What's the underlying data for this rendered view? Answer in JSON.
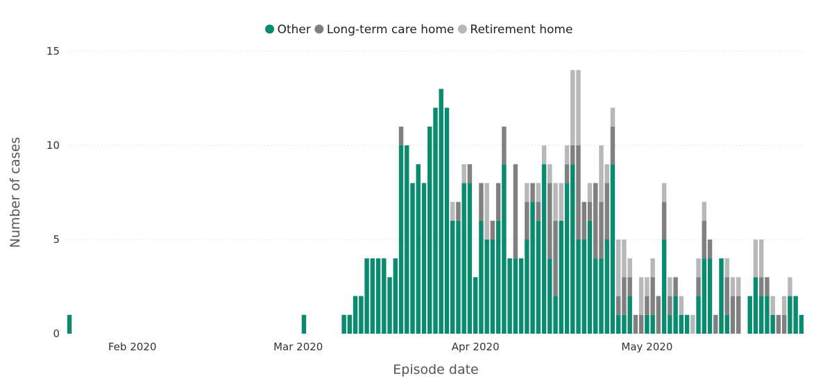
{
  "chart_data": {
    "type": "bar",
    "stacked": true,
    "xlabel": "Episode date",
    "ylabel": "Number of cases",
    "ylim": [
      0,
      15
    ],
    "yticks": [
      0,
      5,
      10,
      15
    ],
    "grid": "horizontal dotted",
    "legend_position": "top-center",
    "x_start": "2020-01-21",
    "x_ticks": [
      {
        "label": "Feb 2020",
        "date": "2020-02-01"
      },
      {
        "label": "Mar 2020",
        "date": "2020-03-01"
      },
      {
        "label": "Apr 2020",
        "date": "2020-04-01"
      },
      {
        "label": "May 2020",
        "date": "2020-05-01"
      }
    ],
    "series": [
      {
        "name": "Other",
        "color": "#0a8a6e",
        "values": [
          1,
          0,
          0,
          0,
          0,
          0,
          0,
          0,
          0,
          0,
          0,
          0,
          0,
          0,
          0,
          0,
          0,
          0,
          0,
          0,
          0,
          0,
          0,
          0,
          0,
          0,
          0,
          0,
          0,
          0,
          0,
          0,
          0,
          0,
          0,
          0,
          0,
          0,
          0,
          0,
          0,
          1,
          0,
          0,
          0,
          0,
          0,
          0,
          1,
          1,
          2,
          2,
          4,
          4,
          4,
          4,
          3,
          4,
          10,
          10,
          8,
          9,
          8,
          11,
          12,
          13,
          12,
          6,
          6,
          8,
          8,
          3,
          6,
          5,
          5,
          6,
          9,
          4,
          4,
          4,
          5,
          7,
          6,
          9,
          4,
          2,
          6,
          8,
          9,
          5,
          5,
          6,
          4,
          4,
          5,
          9,
          1,
          1,
          2,
          0,
          0,
          1,
          1,
          0,
          5,
          1,
          2,
          1,
          1,
          0,
          2,
          4,
          4,
          0,
          4,
          1,
          0,
          0,
          0,
          2,
          3,
          2,
          2,
          1,
          0,
          0,
          2,
          2,
          1
        ]
      },
      {
        "name": "Long-term care home",
        "color": "#808080",
        "values": [
          0,
          0,
          0,
          0,
          0,
          0,
          0,
          0,
          0,
          0,
          0,
          0,
          0,
          0,
          0,
          0,
          0,
          0,
          0,
          0,
          0,
          0,
          0,
          0,
          0,
          0,
          0,
          0,
          0,
          0,
          0,
          0,
          0,
          0,
          0,
          0,
          0,
          0,
          0,
          0,
          0,
          0,
          0,
          0,
          0,
          0,
          0,
          0,
          0,
          0,
          0,
          0,
          0,
          0,
          0,
          0,
          0,
          0,
          1,
          0,
          0,
          0,
          0,
          0,
          0,
          0,
          0,
          0,
          1,
          0,
          1,
          0,
          2,
          0,
          1,
          2,
          2,
          0,
          5,
          0,
          2,
          1,
          1,
          0,
          4,
          4,
          0,
          1,
          1,
          5,
          2,
          1,
          4,
          3,
          3,
          2,
          1,
          2,
          1,
          1,
          1,
          1,
          2,
          2,
          2,
          1,
          1,
          0,
          0,
          0,
          1,
          2,
          1,
          1,
          0,
          2,
          2,
          2,
          0,
          0,
          0,
          1,
          1,
          0,
          1,
          1,
          0,
          0,
          0
        ]
      },
      {
        "name": "Retirement home",
        "color": "#b8b8b8",
        "values": [
          0,
          0,
          0,
          0,
          0,
          0,
          0,
          0,
          0,
          0,
          0,
          0,
          0,
          0,
          0,
          0,
          0,
          0,
          0,
          0,
          0,
          0,
          0,
          0,
          0,
          0,
          0,
          0,
          0,
          0,
          0,
          0,
          0,
          0,
          0,
          0,
          0,
          0,
          0,
          0,
          0,
          0,
          0,
          0,
          0,
          0,
          0,
          0,
          0,
          0,
          0,
          0,
          0,
          0,
          0,
          0,
          0,
          0,
          0,
          0,
          0,
          0,
          0,
          0,
          0,
          0,
          0,
          1,
          0,
          1,
          0,
          0,
          0,
          3,
          0,
          0,
          0,
          0,
          0,
          0,
          1,
          0,
          1,
          1,
          1,
          2,
          2,
          1,
          4,
          4,
          0,
          1,
          0,
          3,
          1,
          1,
          3,
          2,
          1,
          0,
          2,
          1,
          1,
          0,
          1,
          1,
          0,
          1,
          0,
          1,
          1,
          1,
          0,
          0,
          0,
          1,
          1,
          1,
          0,
          0,
          2,
          2,
          0,
          1,
          0,
          1,
          1,
          0,
          0
        ]
      }
    ]
  }
}
